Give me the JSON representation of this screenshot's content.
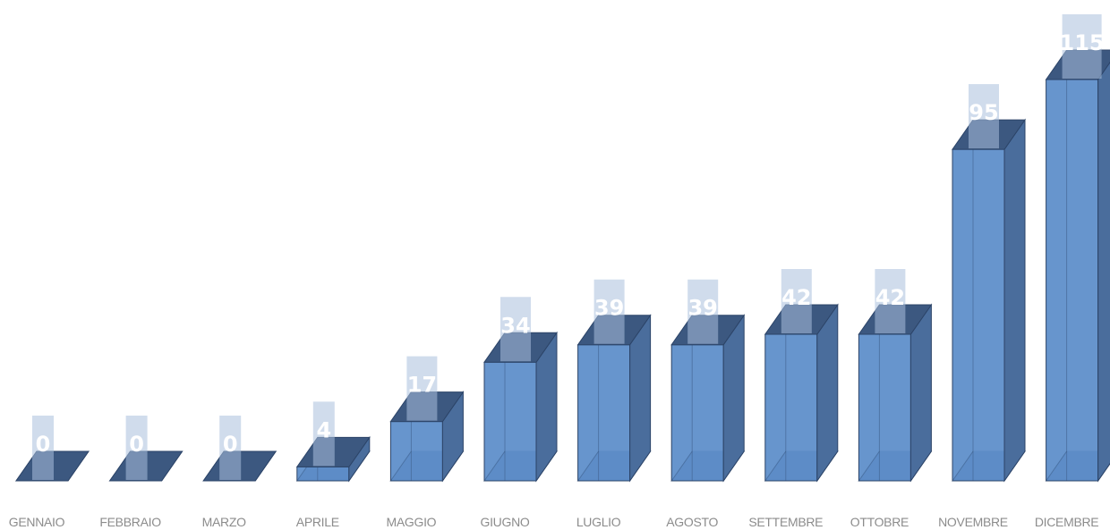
{
  "chart_data": {
    "type": "bar",
    "categories": [
      "GENNAIO",
      "FEBBRAIO",
      "MARZO",
      "APRILE",
      "MAGGIO",
      "GIUGNO",
      "LUGLIO",
      "AGOSTO",
      "SETTEMBRE",
      "OTTOBRE",
      "NOVEMBRE",
      "DICEMBRE"
    ],
    "values": [
      0,
      0,
      0,
      4,
      17,
      34,
      39,
      39,
      42,
      42,
      95,
      115
    ],
    "title": "",
    "xlabel": "",
    "ylabel": "",
    "ylim": [
      0,
      115
    ],
    "grid": false,
    "legend": "none",
    "style": "3d-column",
    "colors": {
      "front": "#5f8fca",
      "side": "#4a6d9c",
      "top": "#3c5880",
      "edge": "#2c4468",
      "label_box": "#aac0dd",
      "data_label": "#ffffff",
      "category_label": "#8c8c8c"
    }
  }
}
